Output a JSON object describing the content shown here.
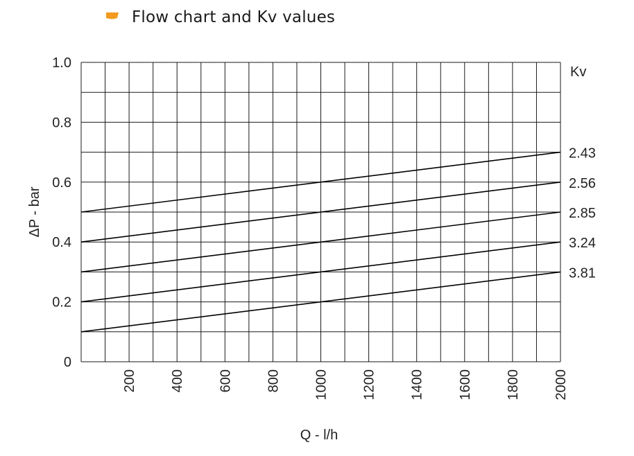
{
  "title": "Flow chart and Kv values",
  "colors": {
    "bullet": "#f39a1f",
    "grid": "#1a1a1a",
    "line": "#000000",
    "text": "#222222"
  },
  "chart_data": {
    "type": "line",
    "title": "Flow chart and Kv values",
    "xlabel": "Q - l/h",
    "ylabel": "ΔP - bar",
    "xlim": [
      0,
      2000
    ],
    "ylim": [
      0,
      1.0
    ],
    "x_ticks": [
      200,
      400,
      600,
      800,
      1000,
      1200,
      1400,
      1600,
      1800,
      2000
    ],
    "x_tick_labels": [
      "200",
      "400",
      "600",
      "800",
      "1000",
      "1200",
      "1400",
      "1600",
      "1800",
      "2000"
    ],
    "y_ticks": [
      0,
      0.2,
      0.4,
      0.6,
      0.8,
      1.0
    ],
    "y_tick_labels": [
      "0",
      "0.2",
      "0.4",
      "0.6",
      "0.8",
      "1.0"
    ],
    "x_grid_step": 100,
    "y_grid_step": 0.1,
    "grid": true,
    "legend_title": "Kv",
    "legend_position": "right",
    "series": [
      {
        "name": "2.43",
        "x": [
          0,
          2000
        ],
        "y": [
          0.5,
          0.7
        ]
      },
      {
        "name": "2.56",
        "x": [
          0,
          2000
        ],
        "y": [
          0.4,
          0.6
        ]
      },
      {
        "name": "2.85",
        "x": [
          0,
          2000
        ],
        "y": [
          0.3,
          0.5
        ]
      },
      {
        "name": "3.24",
        "x": [
          0,
          2000
        ],
        "y": [
          0.2,
          0.4
        ]
      },
      {
        "name": "3.81",
        "x": [
          0,
          2000
        ],
        "y": [
          0.1,
          0.3
        ]
      }
    ]
  }
}
